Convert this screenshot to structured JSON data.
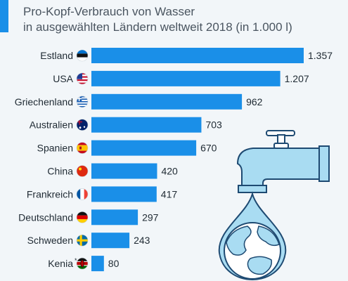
{
  "subtitle_line1": "Pro-Kopf-Verbrauch von Wasser",
  "subtitle_line2": "in ausgewählten Ländern weltweit 2018 (in 1.000 l)",
  "kenia_footnote_mark": "*",
  "chart_data": {
    "type": "bar",
    "orientation": "horizontal",
    "title": "",
    "categories": [
      "Estland",
      "USA",
      "Griechenland",
      "Australien",
      "Spanien",
      "China",
      "Frankreich",
      "Deutschland",
      "Schweden",
      "Kenia"
    ],
    "values": [
      1357,
      1207,
      962,
      703,
      670,
      420,
      417,
      297,
      243,
      80
    ],
    "value_labels": [
      "1.357",
      "1.207",
      "962",
      "703",
      "670",
      "420",
      "417",
      "297",
      "243",
      "80"
    ],
    "flags": [
      "estonia-flag",
      "usa-flag",
      "greece-flag",
      "australia-flag",
      "spain-flag",
      "china-flag",
      "france-flag",
      "germany-flag",
      "sweden-flag",
      "kenya-flag"
    ],
    "xlim": [
      0,
      1357
    ],
    "grid": false,
    "bar_color": "#1a8fe8"
  },
  "illustration": "water-tap-with-earth-droplet-icon"
}
